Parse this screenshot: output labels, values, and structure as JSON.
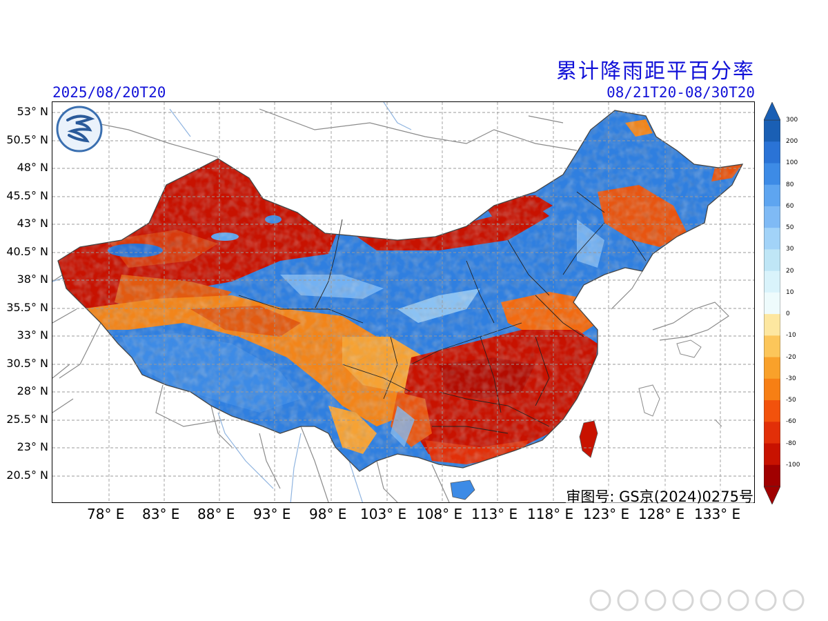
{
  "header": {
    "title": "累计降雨距平百分率",
    "issue_time": "2025/08/20T20",
    "valid_period": "08/21T20-08/30T20"
  },
  "map": {
    "latitude_labels": [
      "53° N",
      "50.5° N",
      "48° N",
      "45.5° N",
      "43° N",
      "40.5° N",
      "38° N",
      "35.5° N",
      "33° N",
      "30.5° N",
      "28° N",
      "25.5° N",
      "23° N",
      "20.5° N"
    ],
    "longitude_labels": [
      "78° E",
      "83° E",
      "88° E",
      "93° E",
      "98° E",
      "103° E",
      "108° E",
      "113° E",
      "118° E",
      "123° E",
      "128° E",
      "133° E"
    ],
    "approval_number": "审图号: GS京(2024)0275号"
  },
  "legend": {
    "levels": [
      "300",
      "200",
      "100",
      "80",
      "60",
      "50",
      "30",
      "20",
      "10",
      "0",
      "-10",
      "-20",
      "-30",
      "-50",
      "-60",
      "-80",
      "-100"
    ],
    "colors": [
      "#1a5fb4",
      "#2a73d6",
      "#3d8be6",
      "#5ea5f0",
      "#7fbaf5",
      "#a2d3f8",
      "#bfe6f6",
      "#d9f3fb",
      "#eefbfc",
      "#fde7a0",
      "#fcc65a",
      "#f9a12a",
      "#f77f14",
      "#f2520c",
      "#e22f08",
      "#c81200",
      "#a00000"
    ]
  },
  "colors": {
    "title_blue": "#1212d8",
    "deficit_red": "#c81200",
    "surplus_blue": "#2f78d8"
  }
}
